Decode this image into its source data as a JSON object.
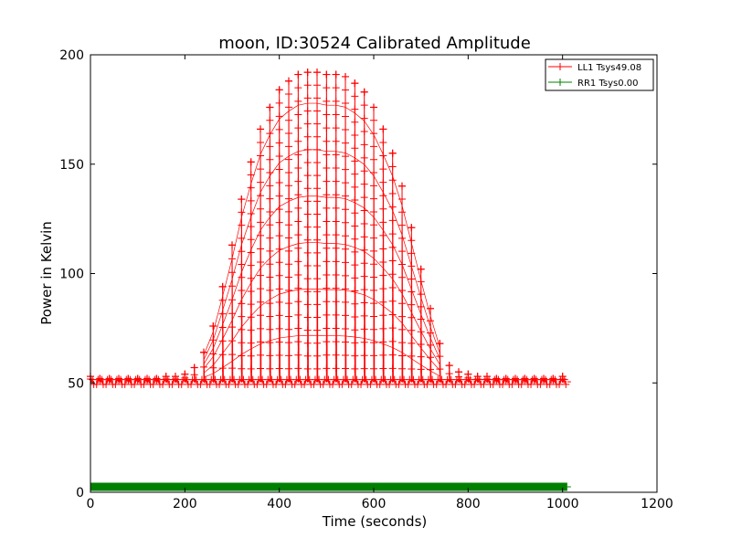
{
  "chart_data": {
    "type": "line",
    "title": "moon, ID:30524 Calibrated Amplitude",
    "xlabel": "Time (seconds)",
    "ylabel": "Power in Kelvin",
    "xlim": [
      0,
      1200
    ],
    "ylim": [
      0,
      200
    ],
    "xticks": [
      "0",
      "200",
      "400",
      "600",
      "800",
      "1000",
      "1200"
    ],
    "yticks": [
      "0",
      "50",
      "100",
      "150",
      "200"
    ],
    "grid": false,
    "legend_position": "top-right",
    "marker": "+",
    "series": [
      {
        "name": "LL1 Tsys49.08",
        "color": "#ff0000",
        "x_range": [
          0,
          1010
        ],
        "baseline": 50.5,
        "peak_times": [
          0,
          20,
          40,
          60,
          80,
          100,
          120,
          140,
          160,
          180,
          200,
          220,
          240,
          260,
          280,
          300,
          320,
          340,
          360,
          380,
          400,
          420,
          440,
          460,
          480,
          500,
          520,
          540,
          560,
          580,
          600,
          620,
          640,
          660,
          680,
          700,
          720,
          740,
          760,
          780,
          800,
          820,
          840,
          860,
          880,
          900,
          920,
          940,
          960,
          980,
          1000
        ],
        "peak_values": [
          53,
          52,
          52,
          52,
          52,
          52,
          52,
          52,
          53,
          53,
          54,
          57,
          64,
          76,
          94,
          113,
          134,
          151,
          166,
          176,
          184,
          188,
          191,
          192,
          192,
          191,
          191,
          190,
          187,
          183,
          176,
          166,
          155,
          140,
          121,
          102,
          84,
          68,
          58,
          55,
          54,
          53,
          53,
          52,
          52,
          52,
          52,
          52,
          52,
          52,
          53
        ]
      },
      {
        "name": "RR1 Tsys0.00",
        "color": "#008000",
        "x_range": [
          0,
          1010
        ],
        "values_constant": 2.5
      }
    ]
  }
}
